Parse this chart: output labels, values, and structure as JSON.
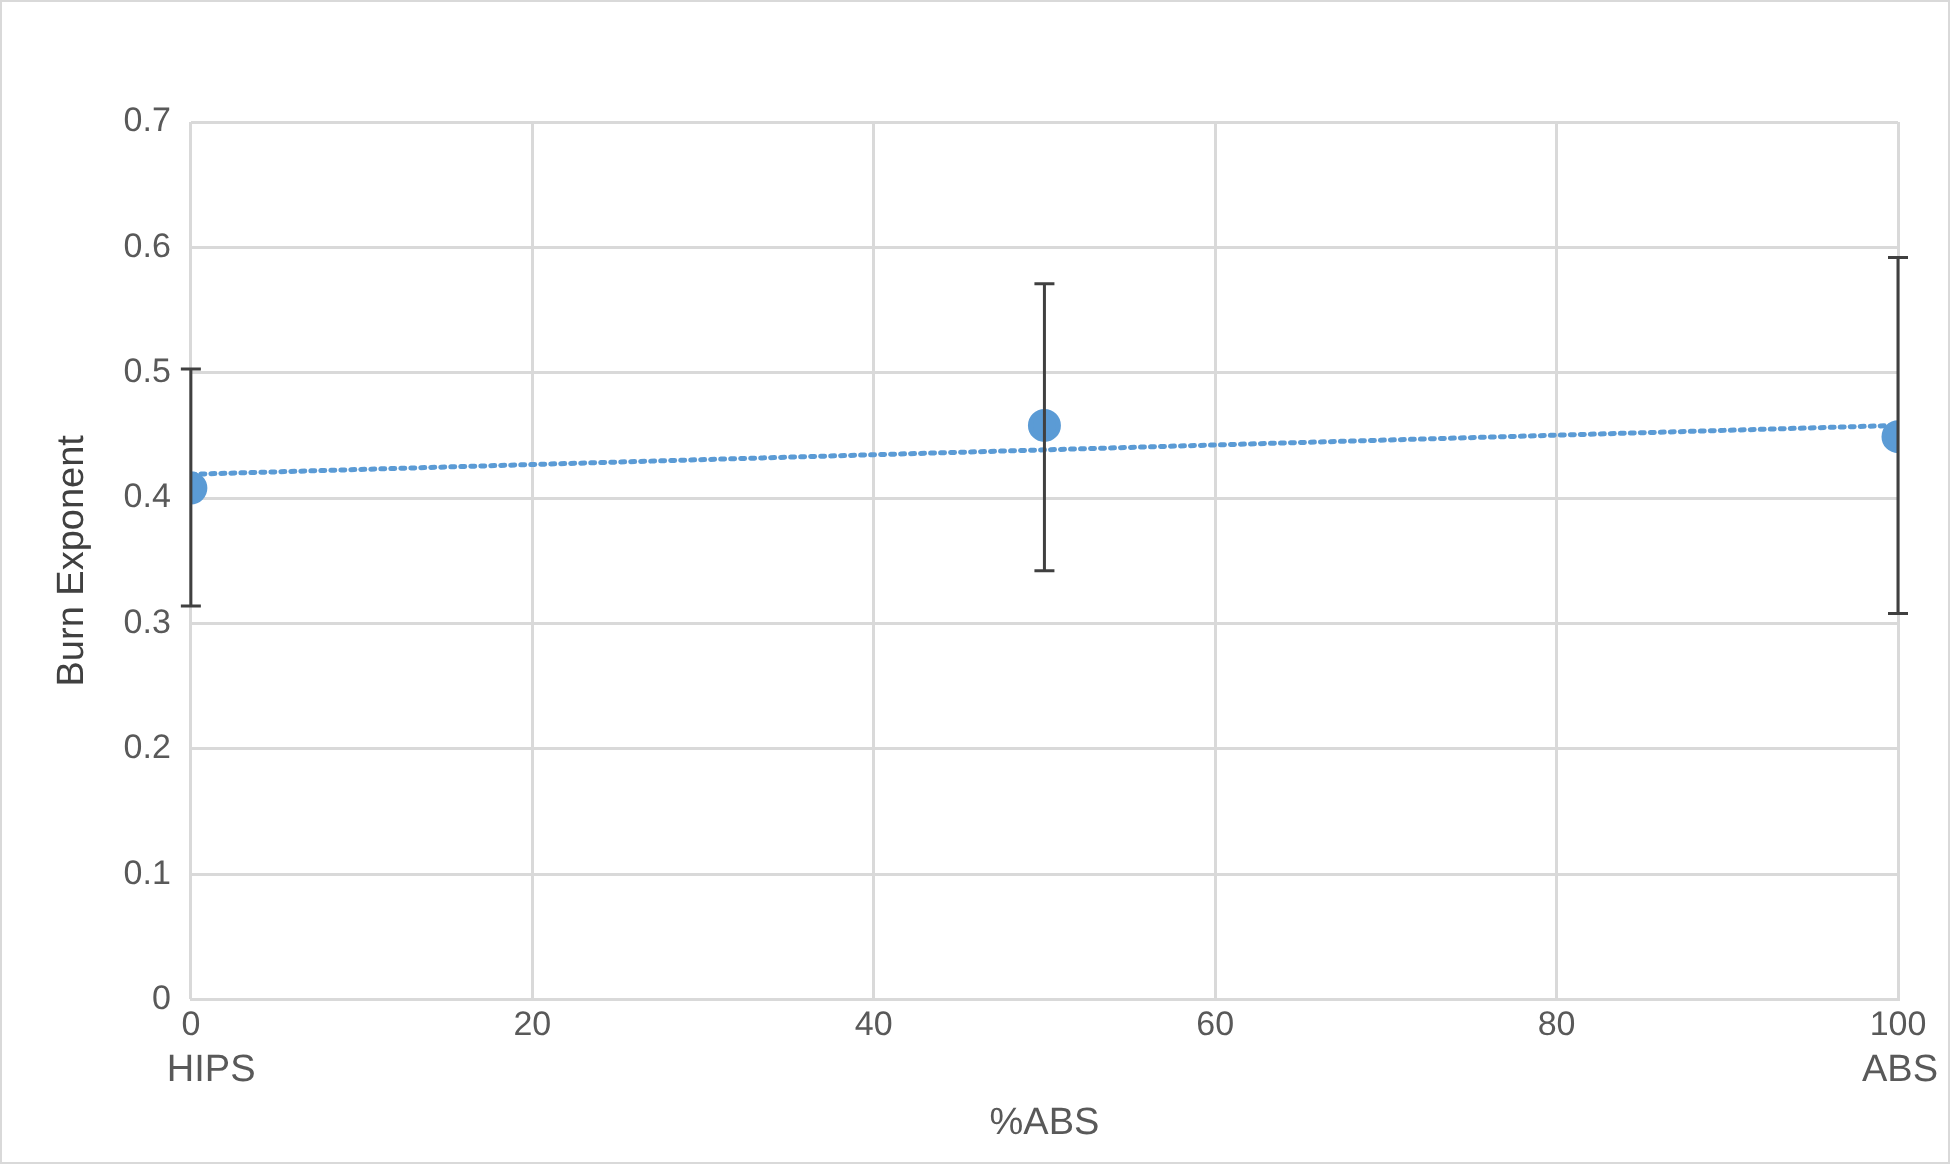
{
  "chart_data": {
    "type": "scatter",
    "xlabel": "%ABS",
    "ylabel": "Burn Exponent",
    "xlim": [
      0,
      100
    ],
    "xticks": [
      0,
      20,
      40,
      60,
      80,
      100
    ],
    "ylim": [
      0,
      0.7
    ],
    "yticks": [
      0,
      0.1,
      0.2,
      0.3,
      0.4,
      0.5,
      0.6,
      0.7
    ],
    "grid": true,
    "legend": false,
    "marker": "circle",
    "series": [
      {
        "type": "scatter",
        "color": "#5b9bd5",
        "x": [
          0,
          50,
          100
        ],
        "values": [
          0.408,
          0.458,
          0.449
        ],
        "errors": [
          [
            0.314,
            0.503
          ],
          [
            0.342,
            0.571
          ],
          [
            0.308,
            0.592
          ]
        ]
      },
      {
        "type": "line",
        "color": "#5b9bd5",
        "x": [
          0,
          100
        ],
        "values": [
          0.419,
          0.458
        ],
        "line_style": "dotted",
        "marker": "none"
      }
    ],
    "annotations": [
      "HIPS",
      "ABS"
    ]
  }
}
